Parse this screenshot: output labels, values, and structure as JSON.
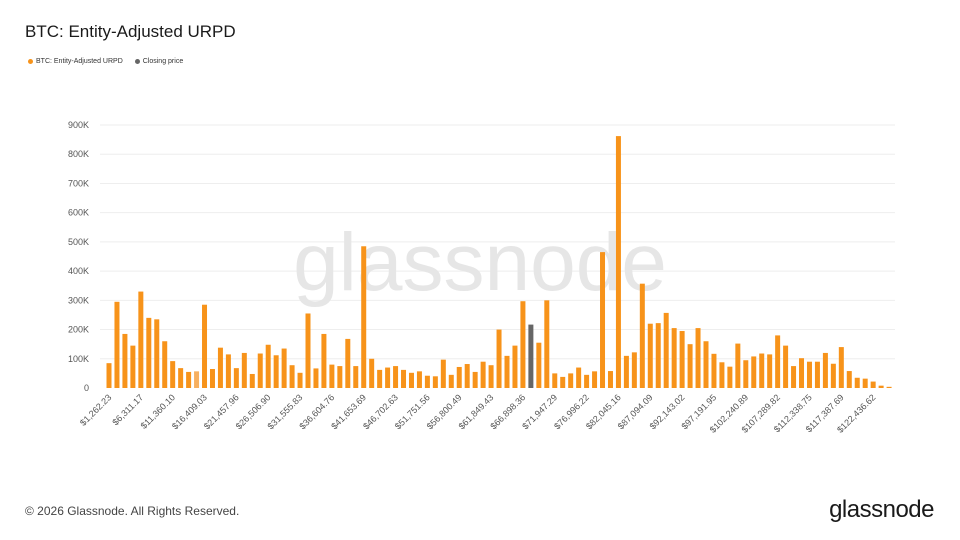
{
  "title": "BTC: Entity-Adjusted URPD",
  "legend": [
    {
      "label": "BTC: Entity-Adjusted URPD",
      "color": "#f7931a"
    },
    {
      "label": "Closing price",
      "color": "#666666"
    }
  ],
  "watermark": "glassnode",
  "footer": "© 2026 Glassnode. All Rights Reserved.",
  "logo": "glassnode",
  "chart_data": {
    "type": "bar",
    "ylim": [
      0,
      900000
    ],
    "y_ticks": [
      0,
      100000,
      200000,
      300000,
      400000,
      500000,
      600000,
      700000,
      800000,
      900000
    ],
    "y_tick_labels": [
      "0",
      "100K",
      "200K",
      "300K",
      "400K",
      "500K",
      "600K",
      "700K",
      "800K",
      "900K"
    ],
    "x_tick_labels": [
      "$1,262.23",
      "$6,311.17",
      "$11,360.10",
      "$16,409.03",
      "$21,457.96",
      "$26,506.90",
      "$31,555.83",
      "$36,604.76",
      "$41,653.69",
      "$46,702.63",
      "$51,751.56",
      "$56,800.49",
      "$61,849.43",
      "$66,898.36",
      "$71,947.29",
      "$76,996.22",
      "$82,045.16",
      "$87,094.09",
      "$92,143.02",
      "$97,191.95",
      "$102,240.89",
      "$107,289.82",
      "$112,338.75",
      "$117,387.69",
      "$122,436.62"
    ],
    "grid": true,
    "closing_price_bar_index": 53,
    "bar_color": "#f7931a",
    "closing_color": "#666666",
    "series": [
      {
        "name": "BTC: Entity-Adjusted URPD",
        "values": [
          85000,
          295000,
          185000,
          145000,
          330000,
          240000,
          235000,
          160000,
          92000,
          68000,
          55000,
          57000,
          285000,
          65000,
          138000,
          115000,
          68000,
          120000,
          48000,
          118000,
          148000,
          112000,
          135000,
          78000,
          52000,
          255000,
          67000,
          185000,
          80000,
          75000,
          168000,
          75000,
          485000,
          100000,
          62000,
          70000,
          75000,
          62000,
          52000,
          57000,
          42000,
          40000,
          97000,
          45000,
          72000,
          82000,
          55000,
          90000,
          78000,
          200000,
          110000,
          145000,
          297000,
          217000,
          155000,
          300000,
          50000,
          38000,
          50000,
          70000,
          45000,
          57000,
          465000,
          58000,
          862000,
          110000,
          122000,
          357000,
          220000,
          222000,
          257000,
          205000,
          195000,
          150000,
          205000,
          160000,
          117000,
          88000,
          73000,
          152000,
          95000,
          108000,
          118000,
          115000,
          180000,
          145000,
          75000,
          102000,
          90000,
          90000,
          120000,
          83000,
          140000,
          58000,
          35000,
          32000,
          22000,
          8000,
          4000
        ]
      }
    ]
  }
}
